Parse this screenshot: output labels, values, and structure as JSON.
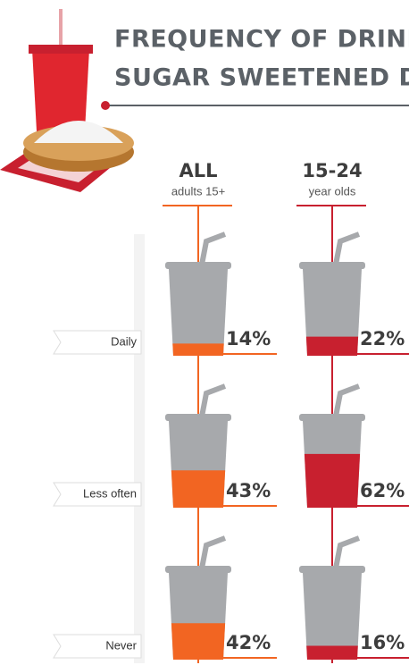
{
  "chart_data": {
    "type": "bar",
    "title": [
      "FREQUENCY OF DRINKING",
      "SUGAR SWEETENED DRINKS"
    ],
    "categories": [
      "Daily",
      "Less often",
      "Never"
    ],
    "ylim": [
      0,
      100
    ],
    "series": [
      {
        "name": "ALL",
        "subtitle": "adults 15+",
        "color": "#f26522",
        "values": [
          14,
          43,
          42
        ],
        "value_labels": [
          "14%",
          "43%",
          "42%"
        ]
      },
      {
        "name": "15-24",
        "subtitle": "year olds",
        "color": "#c8202f",
        "values": [
          22,
          62,
          16
        ],
        "value_labels": [
          "22%",
          "62%",
          "16%"
        ]
      }
    ]
  }
}
